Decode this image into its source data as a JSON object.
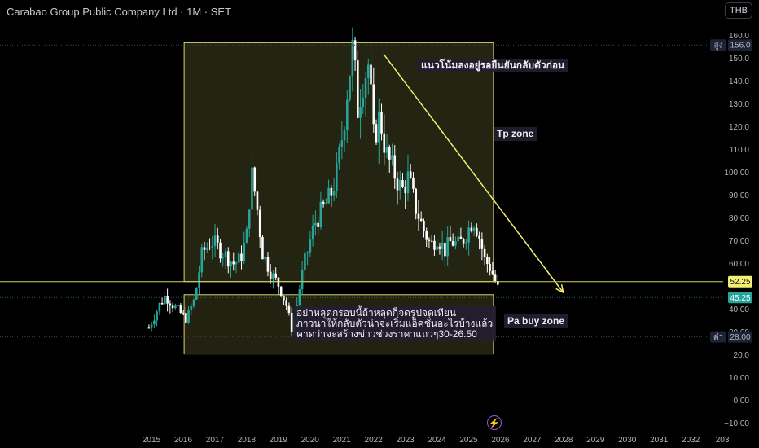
{
  "header": {
    "title": "Carabao Group Public Company Ltd · 1M · SET",
    "currency_button": "THB"
  },
  "annotations": {
    "downtrend_note": "แนวโน้มลงอยู่รอยืนยันกลับตัวก่อน",
    "tp_zone": "Tp zone",
    "buy_zone": "Pa buy zone",
    "warning_note": "อย่าหลุดกรอบนี้ถ้าหลุดก็จดรูปจดเทียน\nภาวนาให้กลับตัวน่าจะเริ่มแอ็คชั่นอะไรบ้างแล้ว\nคาดว่าจะสร้างข่าวช่วงราคาแถวๆ30-26.50"
  },
  "price_badges": {
    "high_label": "สูง",
    "high_value": "156.0",
    "low_label": "ต่ำ",
    "low_value": "28.00",
    "level_value": "52.25",
    "last_value": "45.25"
  },
  "chart_data": {
    "type": "candlestick",
    "title": "Carabao Group Public Company Ltd · 1M · SET",
    "y_ticks": [
      "160.0",
      "150.0",
      "140.0",
      "130.0",
      "120.0",
      "110.0",
      "100.00",
      "90.00",
      "80.00",
      "70.00",
      "60.00",
      "40.00",
      "30.00",
      "20.0",
      "10.00",
      "0.00",
      "−10.00"
    ],
    "x_ticks": [
      "2015",
      "2016",
      "2017",
      "2018",
      "2019",
      "2020",
      "2021",
      "2022",
      "2023",
      "2024",
      "2025",
      "2026",
      "2027",
      "2028",
      "2029",
      "2030",
      "2031",
      "2032",
      "203"
    ],
    "ylim": [
      -14,
      163
    ],
    "xlim": [
      2014.67,
      2033.18
    ],
    "colors": {
      "up": "#26a69a",
      "down": "#ffffff",
      "zone": "#d8d36a",
      "arrow": "#f2ef73",
      "last_badge": "#26a69a"
    },
    "price_path": [
      [
        2014.92,
        32
      ],
      [
        2015.25,
        42
      ],
      [
        2015.45,
        46
      ],
      [
        2015.8,
        40
      ],
      [
        2016.1,
        36
      ],
      [
        2016.35,
        44
      ],
      [
        2016.6,
        65
      ],
      [
        2016.9,
        70
      ],
      [
        2017.25,
        65
      ],
      [
        2017.6,
        60
      ],
      [
        2017.8,
        62
      ],
      [
        2018.0,
        72
      ],
      [
        2018.15,
        100
      ],
      [
        2018.3,
        88
      ],
      [
        2018.5,
        65
      ],
      [
        2018.8,
        55
      ],
      [
        2019.05,
        50
      ],
      [
        2019.25,
        42
      ],
      [
        2019.45,
        30
      ],
      [
        2019.65,
        48
      ],
      [
        2019.85,
        62
      ],
      [
        2020.15,
        78
      ],
      [
        2020.45,
        85
      ],
      [
        2020.65,
        90
      ],
      [
        2020.85,
        100
      ],
      [
        2021.05,
        120
      ],
      [
        2021.2,
        140
      ],
      [
        2021.35,
        155
      ],
      [
        2021.5,
        128
      ],
      [
        2021.65,
        140
      ],
      [
        2021.85,
        148
      ],
      [
        2022.0,
        115
      ],
      [
        2022.2,
        125
      ],
      [
        2022.4,
        108
      ],
      [
        2022.65,
        100
      ],
      [
        2022.9,
        92
      ],
      [
        2023.1,
        98
      ],
      [
        2023.3,
        86
      ],
      [
        2023.55,
        76
      ],
      [
        2023.8,
        68
      ],
      [
        2024.0,
        72
      ],
      [
        2024.25,
        66
      ],
      [
        2024.45,
        70
      ],
      [
        2024.7,
        68
      ],
      [
        2024.95,
        74
      ],
      [
        2025.15,
        80
      ],
      [
        2025.3,
        74
      ],
      [
        2025.5,
        62
      ],
      [
        2025.7,
        58
      ],
      [
        2025.85,
        52
      ],
      [
        2025.95,
        48
      ]
    ],
    "high": 156.0,
    "low": 28.0,
    "level": 52.25,
    "last": 45.25,
    "zones": [
      {
        "x0": 2016.03,
        "x1": 2025.78,
        "y0": 52.25,
        "y1": 157.0
      },
      {
        "x0": 2016.03,
        "x1": 2025.78,
        "y0": 20.5,
        "y1": 46.5
      }
    ],
    "trend_arrow": {
      "from": [
        2022.32,
        152
      ],
      "to": [
        2027.98,
        47.5
      ]
    }
  }
}
